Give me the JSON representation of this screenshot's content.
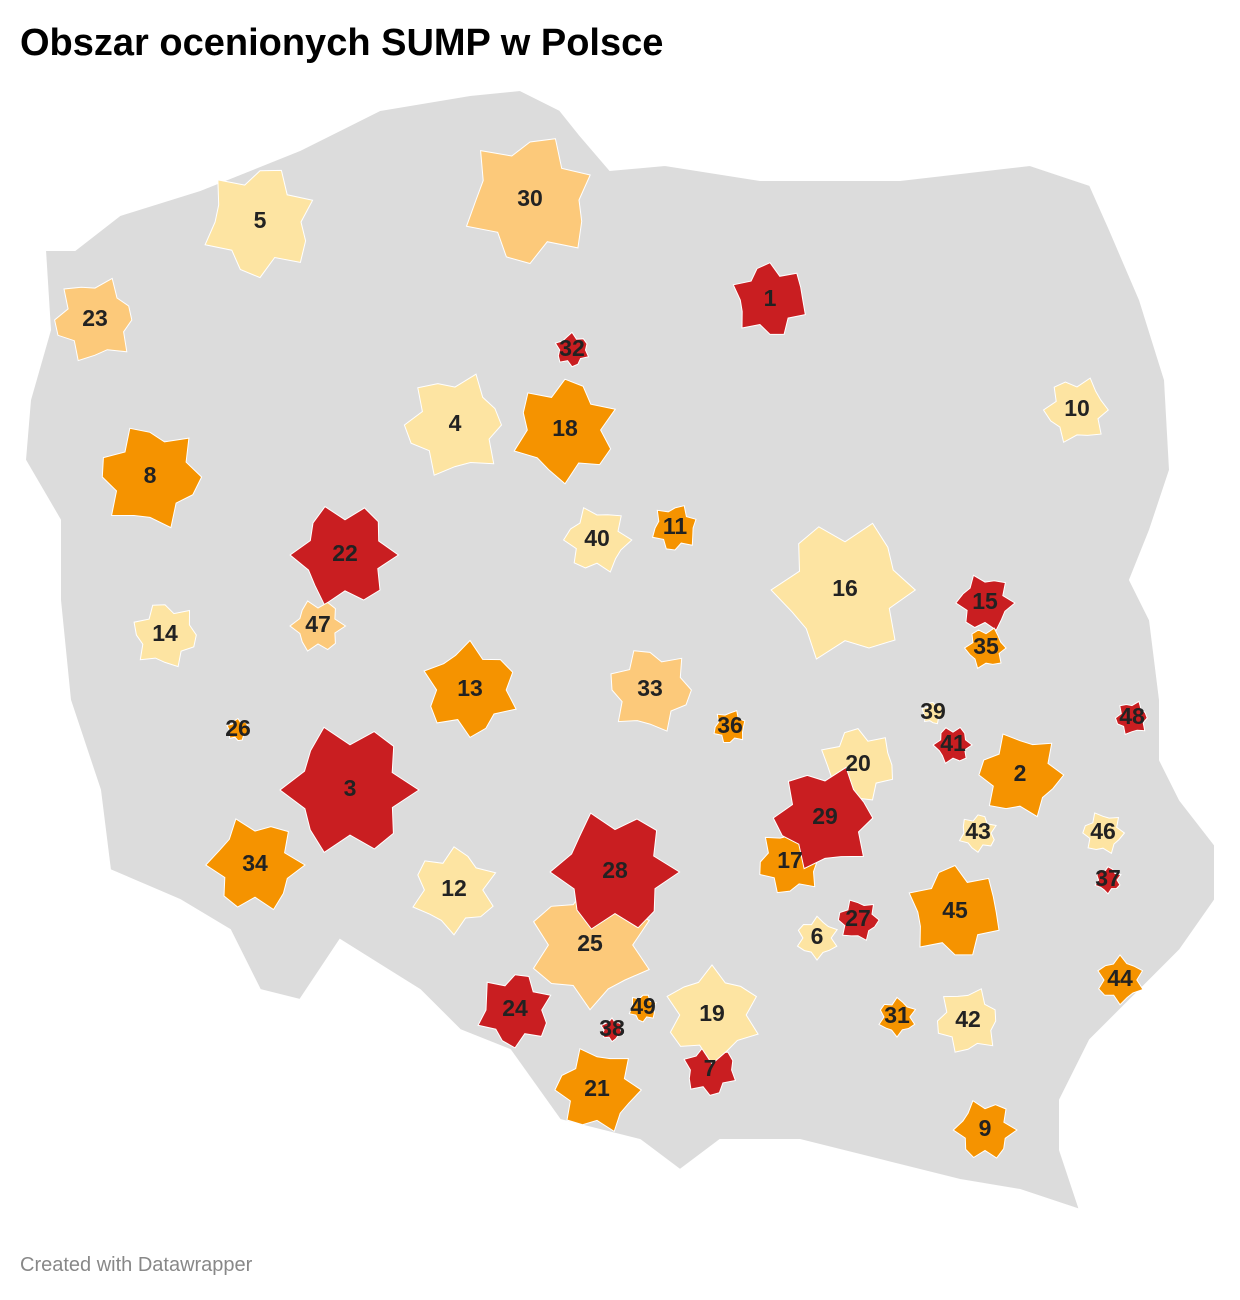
{
  "header": {
    "title": "Obszar ocenionych SUMP w Polsce"
  },
  "map": {
    "regions": [
      {
        "label": "1",
        "color": "#c91e21"
      },
      {
        "label": "2",
        "color": "#f59300"
      },
      {
        "label": "3",
        "color": "#c91e21"
      },
      {
        "label": "4",
        "color": "#fde4a2"
      },
      {
        "label": "5",
        "color": "#fde4a2"
      },
      {
        "label": "6",
        "color": "#fde4a2"
      },
      {
        "label": "7",
        "color": "#c91e21"
      },
      {
        "label": "8",
        "color": "#f59300"
      },
      {
        "label": "9",
        "color": "#f59300"
      },
      {
        "label": "10",
        "color": "#fde4a2"
      },
      {
        "label": "11",
        "color": "#f59300"
      },
      {
        "label": "12",
        "color": "#fde4a2"
      },
      {
        "label": "13",
        "color": "#f59300"
      },
      {
        "label": "14",
        "color": "#fde4a2"
      },
      {
        "label": "15",
        "color": "#c91e21"
      },
      {
        "label": "16",
        "color": "#fde4a2"
      },
      {
        "label": "17",
        "color": "#f59300"
      },
      {
        "label": "18",
        "color": "#f59300"
      },
      {
        "label": "19",
        "color": "#fde4a2"
      },
      {
        "label": "20",
        "color": "#fde4a2"
      },
      {
        "label": "21",
        "color": "#f59300"
      },
      {
        "label": "22",
        "color": "#c91e21"
      },
      {
        "label": "23",
        "color": "#fcc97a"
      },
      {
        "label": "24",
        "color": "#c91e21"
      },
      {
        "label": "25",
        "color": "#fcc97a"
      },
      {
        "label": "26",
        "color": "#f59300"
      },
      {
        "label": "27",
        "color": "#c91e21"
      },
      {
        "label": "28",
        "color": "#c91e21"
      },
      {
        "label": "29",
        "color": "#c91e21"
      },
      {
        "label": "30",
        "color": "#fcc97a"
      },
      {
        "label": "31",
        "color": "#f59300"
      },
      {
        "label": "32",
        "color": "#c91e21"
      },
      {
        "label": "33",
        "color": "#fcc97a"
      },
      {
        "label": "34",
        "color": "#f59300"
      },
      {
        "label": "35",
        "color": "#f59300"
      },
      {
        "label": "36",
        "color": "#f59300"
      },
      {
        "label": "37",
        "color": "#c91e21"
      },
      {
        "label": "38",
        "color": "#c91e21"
      },
      {
        "label": "39",
        "color": "#fde4a2"
      },
      {
        "label": "40",
        "color": "#fde4a2"
      },
      {
        "label": "41",
        "color": "#c91e21"
      },
      {
        "label": "42",
        "color": "#fde4a2"
      },
      {
        "label": "43",
        "color": "#fde4a2"
      },
      {
        "label": "44",
        "color": "#f59300"
      },
      {
        "label": "45",
        "color": "#f59300"
      },
      {
        "label": "46",
        "color": "#fde4a2"
      },
      {
        "label": "47",
        "color": "#fcc97a"
      },
      {
        "label": "48",
        "color": "#c91e21"
      },
      {
        "label": "49",
        "color": "#f59300"
      }
    ]
  },
  "footer": {
    "credit": "Created with Datawrapper"
  }
}
